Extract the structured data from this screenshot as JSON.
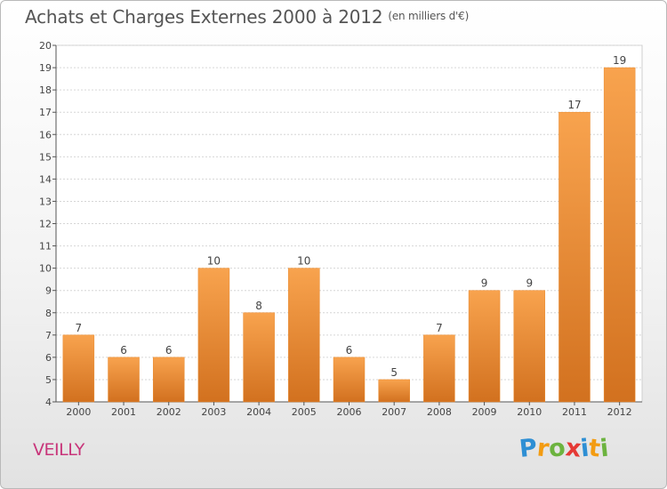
{
  "title": "Achats et Charges Externes 2000 à 2012",
  "subtitle": "(en milliers d'€)",
  "place_label": "VEILLY",
  "logo": {
    "text": "Proxiti",
    "letters": [
      {
        "ch": "P",
        "color": "#2e8fd4"
      },
      {
        "ch": "r",
        "color": "#f39c12"
      },
      {
        "ch": "o",
        "color": "#6cb33f"
      },
      {
        "ch": "x",
        "color": "#e53935"
      },
      {
        "ch": "i",
        "color": "#2e8fd4"
      },
      {
        "ch": "t",
        "color": "#f39c12"
      },
      {
        "ch": "i",
        "color": "#6cb33f"
      }
    ]
  },
  "colors": {
    "bar_top": "#f8a34e",
    "bar_bottom": "#d2711f",
    "bar_edge": "#e98a2e",
    "grid": "#d6d6d6",
    "text": "#444444"
  },
  "chart_data": {
    "type": "bar",
    "title": "Achats et Charges Externes 2000 à 2012",
    "subtitle": "(en milliers d'€)",
    "xlabel": "",
    "ylabel": "",
    "categories": [
      "2000",
      "2001",
      "2002",
      "2003",
      "2004",
      "2005",
      "2006",
      "2007",
      "2008",
      "2009",
      "2010",
      "2011",
      "2012"
    ],
    "values": [
      7,
      6,
      6,
      10,
      8,
      10,
      6,
      5,
      7,
      9,
      9,
      17,
      19
    ],
    "data_labels": [
      "7",
      "6",
      "6",
      "10",
      "8",
      "10",
      "6",
      "5",
      "7",
      "9",
      "9",
      "17",
      "19"
    ],
    "ylim": [
      4,
      20
    ],
    "yticks": [
      4,
      5,
      6,
      7,
      8,
      9,
      10,
      11,
      12,
      13,
      14,
      15,
      16,
      17,
      18,
      19,
      20
    ],
    "grid": true,
    "legend": "none"
  }
}
